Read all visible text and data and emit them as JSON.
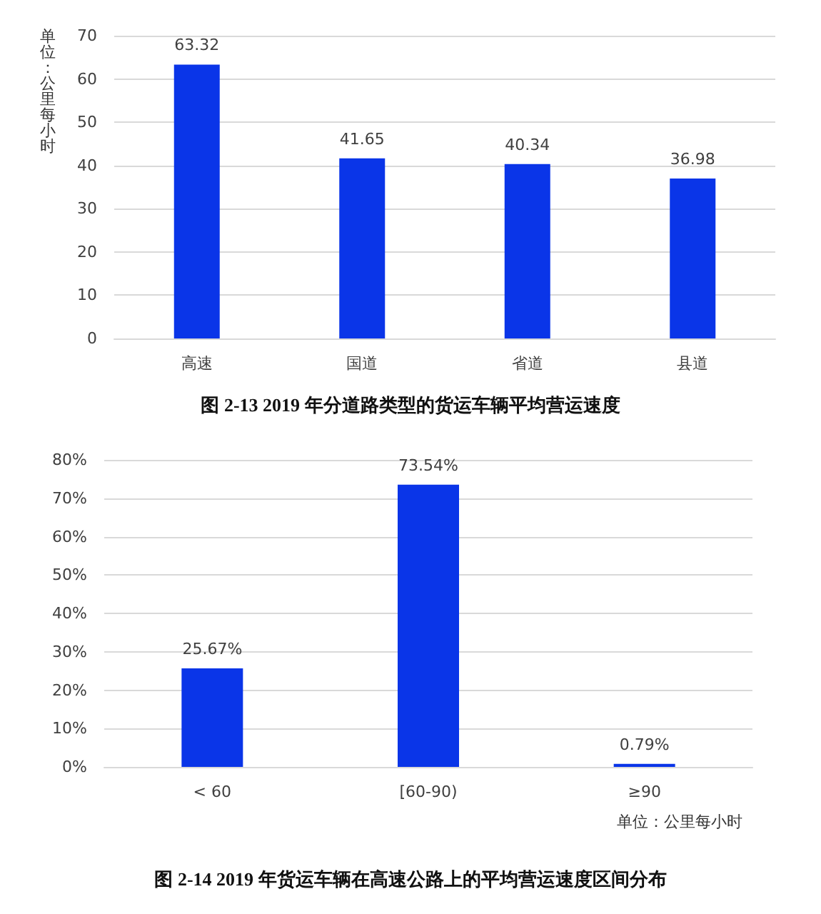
{
  "chart_data": [
    {
      "type": "bar",
      "title": "图 2-13 2019 年分道路类型的货运车辆平均营运速度",
      "ylabel": "单位：公里每小时",
      "categories": [
        "高速",
        "国道",
        "省道",
        "县道"
      ],
      "values": [
        63.32,
        41.65,
        40.34,
        36.98
      ],
      "color": "#0a35e8",
      "ylim": [
        0,
        70
      ],
      "yticks": [
        0,
        10,
        20,
        30,
        40,
        50,
        60,
        70
      ],
      "grid": "y",
      "data_labels": true
    },
    {
      "type": "bar",
      "title": "图 2-14 2019 年货运车辆在高速公路上的平均营运速度区间分布",
      "annotations": [
        "单位：公里每小时"
      ],
      "categories": [
        "< 60",
        "[60-90)",
        "≥90"
      ],
      "values": [
        25.67,
        73.54,
        0.79
      ],
      "value_labels": [
        "25.67%",
        "73.54%",
        "0.79%"
      ],
      "color": "#0a35e8",
      "ylim": [
        0,
        80
      ],
      "yticks": [
        {
          "value": 0,
          "label": "0%"
        },
        {
          "value": 10,
          "label": "10%"
        },
        {
          "value": 20,
          "label": "20%"
        },
        {
          "value": 30,
          "label": "30%"
        },
        {
          "value": 40,
          "label": "40%"
        },
        {
          "value": 50,
          "label": "50%"
        },
        {
          "value": 60,
          "label": "60%"
        },
        {
          "value": 70,
          "label": "70%"
        },
        {
          "value": 80,
          "label": "80%"
        }
      ],
      "grid": "y"
    }
  ]
}
